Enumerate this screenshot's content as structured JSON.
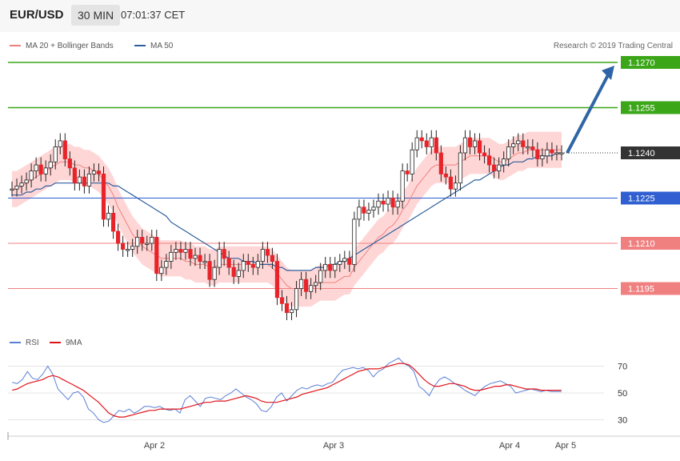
{
  "header": {
    "symbol": "EUR/USD",
    "interval": "30 MIN",
    "time": "07:01:37 CET"
  },
  "legend": {
    "bands_label": "MA 20 + Bollinger Bands",
    "ma50_label": "MA 50",
    "credit": "Research © 2019 Trading Central"
  },
  "rsi_legend": {
    "rsi_label": "RSI",
    "ma9_label": "9MA"
  },
  "colors": {
    "up": "#e8242a",
    "down": "#e8242a",
    "ma20": "#f08080",
    "band_fill": "#ffd6d6",
    "ma50": "#2f5f9e",
    "target": "#3ba618",
    "support": "#2f5fd0",
    "resistance": "#f08080",
    "rsi": "#5a7fd6",
    "rsi_ma": "#e0141a",
    "arrow": "#2f65a6"
  },
  "chart_data": [
    {
      "type": "candlestick",
      "title": "EUR/USD 30 MIN",
      "ylim": [
        1.118,
        1.128
      ],
      "x_ticks": [
        "Apr 2",
        "Apr 3",
        "Apr 4",
        "Apr 5"
      ],
      "last_price": "1.1240",
      "levels": [
        {
          "value": 1.127,
          "label": "1.1270",
          "kind": "target"
        },
        {
          "value": 1.1255,
          "label": "1.1255",
          "kind": "target"
        },
        {
          "value": 1.1225,
          "label": "1.1225",
          "kind": "support"
        },
        {
          "value": 1.121,
          "label": "1.1210",
          "kind": "resistance"
        },
        {
          "value": 1.1195,
          "label": "1.1195",
          "kind": "resistance"
        }
      ],
      "closes": [
        1.1228,
        1.1229,
        1.123,
        1.1231,
        1.1234,
        1.1236,
        1.1233,
        1.1235,
        1.1237,
        1.1242,
        1.1244,
        1.1238,
        1.1235,
        1.123,
        1.1232,
        1.1229,
        1.1233,
        1.1234,
        1.1233,
        1.1218,
        1.122,
        1.1214,
        1.121,
        1.1208,
        1.1208,
        1.1209,
        1.1212,
        1.121,
        1.121,
        1.1212,
        1.12,
        1.1202,
        1.1204,
        1.1207,
        1.1208,
        1.1207,
        1.1208,
        1.1205,
        1.1206,
        1.1204,
        1.1204,
        1.1198,
        1.1202,
        1.1208,
        1.1205,
        1.1202,
        1.1199,
        1.1201,
        1.1204,
        1.1203,
        1.1202,
        1.1204,
        1.1208,
        1.1206,
        1.1204,
        1.1192,
        1.119,
        1.1187,
        1.1188,
        1.1195,
        1.1198,
        1.1194,
        1.1196,
        1.1197,
        1.1201,
        1.1203,
        1.1201,
        1.1203,
        1.1204,
        1.1205,
        1.1203,
        1.1218,
        1.1222,
        1.122,
        1.1221,
        1.1222,
        1.1224,
        1.1223,
        1.1225,
        1.1222,
        1.1224,
        1.1234,
        1.1233,
        1.1241,
        1.1245,
        1.1244,
        1.1242,
        1.1245,
        1.124,
        1.1233,
        1.1232,
        1.1228,
        1.123,
        1.124,
        1.1245,
        1.1242,
        1.1244,
        1.124,
        1.1239,
        1.1236,
        1.1234,
        1.1236,
        1.1238,
        1.1242,
        1.1243,
        1.1244,
        1.1242,
        1.1242,
        1.1241,
        1.1238,
        1.1239,
        1.1241,
        1.124,
        1.124,
        1.124
      ],
      "ma20": [
        1.1228,
        1.1228,
        1.1229,
        1.123,
        1.1231,
        1.1232,
        1.1233,
        1.1234,
        1.1235,
        1.1236,
        1.1237,
        1.1237,
        1.1237,
        1.1236,
        1.1236,
        1.1235,
        1.1235,
        1.1234,
        1.1233,
        1.1231,
        1.1229,
        1.1226,
        1.1222,
        1.1219,
        1.1216,
        1.1213,
        1.1211,
        1.1209,
        1.1208,
        1.1207,
        1.1206,
        1.1205,
        1.1205,
        1.1205,
        1.1205,
        1.1205,
        1.1204,
        1.1204,
        1.1203,
        1.1203,
        1.1203,
        1.1202,
        1.1202,
        1.1203,
        1.1203,
        1.1203,
        1.1203,
        1.1203,
        1.1203,
        1.1203,
        1.1203,
        1.1203,
        1.1203,
        1.1203,
        1.1202,
        1.12,
        1.1198,
        1.1196,
        1.1195,
        1.1195,
        1.1195,
        1.1195,
        1.1195,
        1.1196,
        1.1197,
        1.1197,
        1.1197,
        1.1197,
        1.1198,
        1.1199,
        1.1199,
        1.1202,
        1.1204,
        1.1206,
        1.1208,
        1.121,
        1.1212,
        1.1213,
        1.1215,
        1.1216,
        1.1218,
        1.1221,
        1.1223,
        1.1226,
        1.1229,
        1.1231,
        1.1233,
        1.1235,
        1.1236,
        1.1236,
        1.1236,
        1.1236,
        1.1236,
        1.1237,
        1.1238,
        1.1239,
        1.1239,
        1.1239,
        1.1239,
        1.1239,
        1.1238,
        1.1237,
        1.1237,
        1.1238,
        1.1239,
        1.124,
        1.124,
        1.1241,
        1.1241,
        1.1241,
        1.1241,
        1.1241,
        1.1241,
        1.1241,
        1.1241
      ],
      "ma50": [
        1.1226,
        1.1226,
        1.1226,
        1.1227,
        1.1227,
        1.1228,
        1.1228,
        1.1229,
        1.1229,
        1.123,
        1.123,
        1.123,
        1.123,
        1.123,
        1.123,
        1.123,
        1.123,
        1.123,
        1.123,
        1.123,
        1.123,
        1.1229,
        1.1229,
        1.1228,
        1.1227,
        1.1226,
        1.1225,
        1.1224,
        1.1223,
        1.1222,
        1.1221,
        1.122,
        1.1219,
        1.1217,
        1.1216,
        1.1215,
        1.1214,
        1.1213,
        1.1212,
        1.1211,
        1.121,
        1.1209,
        1.1208,
        1.1207,
        1.1206,
        1.1205,
        1.1205,
        1.1205,
        1.1204,
        1.1204,
        1.1204,
        1.1203,
        1.1203,
        1.1203,
        1.1203,
        1.1202,
        1.1202,
        1.1201,
        1.1201,
        1.1201,
        1.1201,
        1.1201,
        1.1201,
        1.1202,
        1.1202,
        1.1202,
        1.1203,
        1.1203,
        1.1204,
        1.1204,
        1.1205,
        1.1206,
        1.1207,
        1.1208,
        1.1209,
        1.121,
        1.1211,
        1.1212,
        1.1213,
        1.1214,
        1.1215,
        1.1216,
        1.1217,
        1.1218,
        1.1219,
        1.122,
        1.1221,
        1.1222,
        1.1223,
        1.1224,
        1.1225,
        1.1226,
        1.1227,
        1.1228,
        1.1229,
        1.123,
        1.1231,
        1.1231,
        1.1232,
        1.1233,
        1.1234,
        1.1235,
        1.1236,
        1.1236,
        1.1237,
        1.1237,
        1.1237,
        1.1238,
        1.1238,
        1.1239,
        1.1239,
        1.1239,
        1.1239,
        1.124,
        1.124
      ],
      "band_width": 0.0006,
      "projection": {
        "from": 1.124,
        "to": 1.127
      }
    },
    {
      "type": "line",
      "title": "RSI",
      "ylim": [
        25,
        80
      ],
      "y_ticks": [
        70,
        50,
        30
      ],
      "series": [
        {
          "name": "RSI",
          "values": [
            58,
            57,
            60,
            66,
            61,
            60,
            64,
            70,
            64,
            53,
            49,
            45,
            50,
            51,
            47,
            38,
            35,
            30,
            28,
            29,
            33,
            37,
            36,
            38,
            35,
            37,
            40,
            40,
            39,
            40,
            38,
            37,
            38,
            35,
            45,
            48,
            44,
            40,
            46,
            47,
            46,
            45,
            48,
            50,
            53,
            50,
            47,
            45,
            42,
            37,
            36,
            40,
            47,
            50,
            44,
            48,
            52,
            54,
            53,
            55,
            56,
            55,
            57,
            58,
            63,
            67,
            68,
            69,
            68,
            69,
            67,
            62,
            66,
            68,
            72,
            74,
            76,
            72,
            70,
            66,
            55,
            52,
            48,
            55,
            60,
            62,
            60,
            57,
            55,
            52,
            50,
            48,
            52,
            55,
            57,
            58,
            59,
            57,
            55,
            50,
            51,
            52,
            53,
            52,
            51,
            52,
            51,
            51,
            51
          ]
        },
        {
          "name": "9MA",
          "values": [
            52,
            53,
            55,
            57,
            58,
            59,
            60,
            62,
            63,
            62,
            60,
            58,
            56,
            54,
            52,
            49,
            46,
            43,
            39,
            35,
            33,
            32,
            32,
            33,
            34,
            35,
            36,
            37,
            37,
            38,
            38,
            38,
            38,
            38,
            39,
            40,
            41,
            42,
            43,
            43,
            44,
            44,
            44,
            45,
            46,
            47,
            48,
            47,
            46,
            44,
            43,
            43,
            43,
            44,
            45,
            46,
            47,
            49,
            50,
            51,
            52,
            53,
            54,
            56,
            58,
            60,
            62,
            64,
            66,
            67,
            68,
            68,
            68,
            69,
            70,
            71,
            72,
            72,
            71,
            68,
            64,
            60,
            57,
            55,
            55,
            56,
            57,
            57,
            56,
            55,
            53,
            52,
            52,
            53,
            54,
            55,
            55,
            56,
            56,
            55,
            54,
            53,
            53,
            53,
            52,
            52,
            52,
            52,
            52
          ]
        }
      ]
    }
  ]
}
